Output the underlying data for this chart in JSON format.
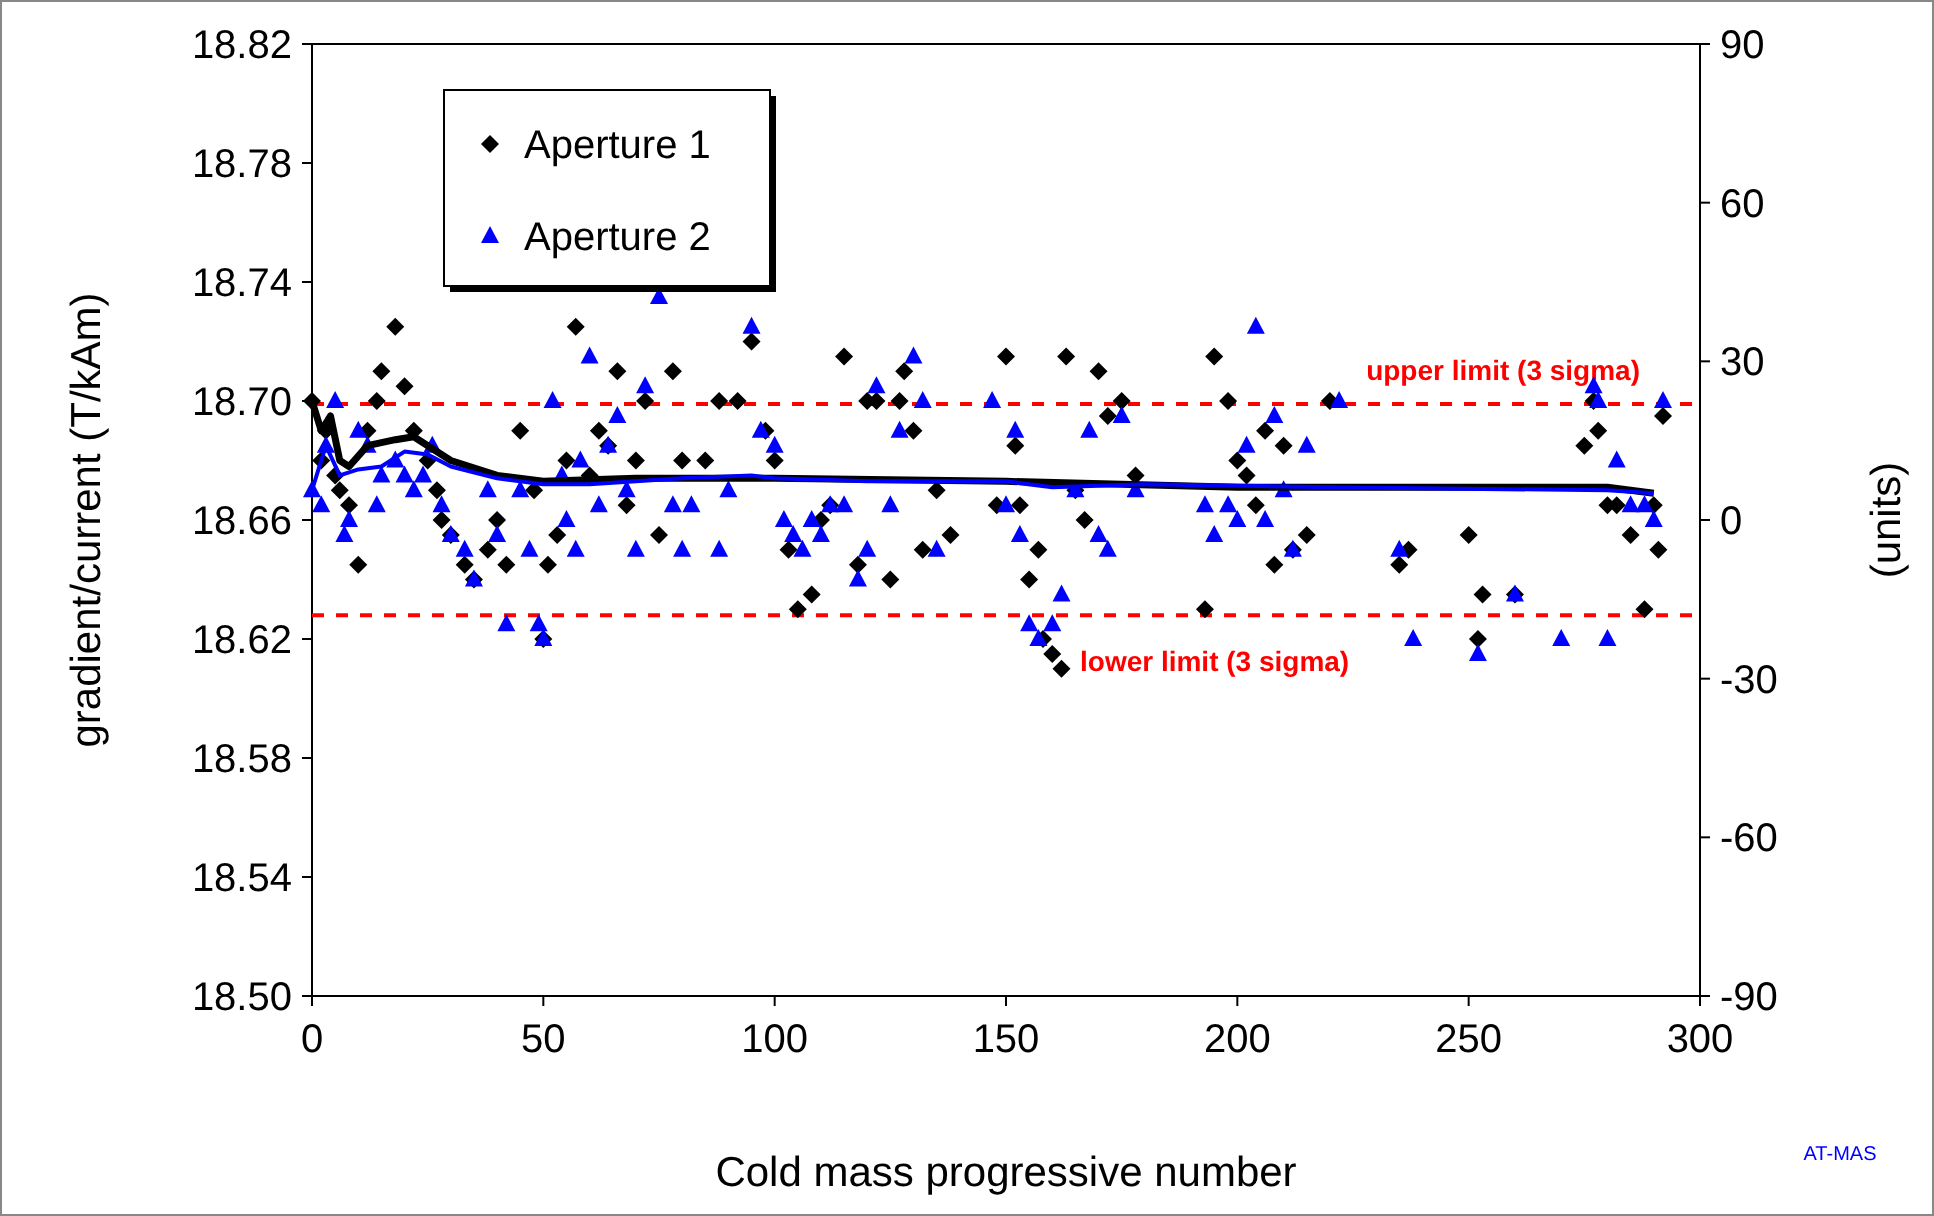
{
  "chart_data": {
    "type": "scatter",
    "xlabel": "Cold mass progressive number",
    "ylabel": "gradient/current  (T/kAm)",
    "y2label": "(units)",
    "xlim": [
      0,
      300
    ],
    "xticks": [
      0,
      50,
      100,
      150,
      200,
      250,
      300
    ],
    "ylim": [
      18.5,
      18.82
    ],
    "yticks": [
      {
        "value": 18.5,
        "label": "18.50"
      },
      18.54,
      18.58,
      18.62,
      18.66,
      {
        "value": 18.7,
        "label": "18.70"
      },
      18.74,
      18.78,
      18.82
    ],
    "y2lim": [
      -90,
      90
    ],
    "y2ticks": [
      -90,
      -60,
      -30,
      0,
      30,
      60,
      90
    ],
    "grid": false,
    "legend": "top left",
    "ref_lines": [
      {
        "axis": "y",
        "value": 18.699,
        "label": "upper limit (3 sigma)",
        "color": "#ff0000",
        "line_style": "dashed"
      },
      {
        "axis": "y",
        "value": 18.628,
        "label": "lower limit (3 sigma)",
        "color": "#ff0000",
        "line_style": "dashed"
      }
    ],
    "annotations": [
      "AT-MAS"
    ],
    "series": [
      {
        "name": "Aperture 1",
        "marker": "diamond",
        "color": "#000000",
        "x": [
          0,
          2,
          3,
          5,
          6,
          8,
          10,
          12,
          14,
          15,
          18,
          20,
          22,
          25,
          27,
          28,
          30,
          33,
          35,
          38,
          40,
          42,
          45,
          48,
          50,
          51,
          53,
          55,
          57,
          60,
          62,
          64,
          66,
          68,
          70,
          72,
          75,
          78,
          80,
          85,
          88,
          92,
          95,
          98,
          100,
          103,
          105,
          108,
          110,
          112,
          115,
          118,
          120,
          122,
          125,
          127,
          128,
          130,
          132,
          135,
          138,
          148,
          150,
          152,
          153,
          155,
          157,
          158,
          160,
          162,
          163,
          165,
          167,
          170,
          172,
          175,
          178,
          193,
          195,
          198,
          200,
          202,
          204,
          206,
          208,
          210,
          212,
          215,
          220,
          235,
          237,
          250,
          252,
          253,
          260,
          275,
          277,
          278,
          280,
          282,
          285,
          288,
          290,
          292,
          291
        ],
        "values": [
          18.7,
          18.68,
          18.69,
          18.675,
          18.67,
          18.665,
          18.645,
          18.69,
          18.7,
          18.71,
          18.725,
          18.705,
          18.69,
          18.68,
          18.67,
          18.66,
          18.655,
          18.645,
          18.64,
          18.65,
          18.66,
          18.645,
          18.69,
          18.67,
          18.62,
          18.645,
          18.655,
          18.68,
          18.725,
          18.675,
          18.69,
          18.685,
          18.71,
          18.665,
          18.68,
          18.7,
          18.655,
          18.71,
          18.68,
          18.68,
          18.7,
          18.7,
          18.72,
          18.69,
          18.68,
          18.65,
          18.63,
          18.635,
          18.66,
          18.665,
          18.715,
          18.645,
          18.7,
          18.7,
          18.64,
          18.7,
          18.71,
          18.69,
          18.65,
          18.67,
          18.655,
          18.665,
          18.715,
          18.685,
          18.665,
          18.64,
          18.65,
          18.62,
          18.615,
          18.61,
          18.715,
          18.67,
          18.66,
          18.71,
          18.695,
          18.7,
          18.675,
          18.63,
          18.715,
          18.7,
          18.68,
          18.675,
          18.665,
          18.69,
          18.645,
          18.685,
          18.65,
          18.655,
          18.7,
          18.645,
          18.65,
          18.655,
          18.62,
          18.635,
          18.635,
          18.685,
          18.7,
          18.69,
          18.665,
          18.665,
          18.655,
          18.63,
          18.665,
          18.695,
          18.65
        ]
      },
      {
        "name": "Aperture 2",
        "marker": "triangle",
        "color": "#0000ff",
        "x": [
          0,
          2,
          3,
          5,
          7,
          8,
          10,
          12,
          14,
          15,
          18,
          20,
          22,
          24,
          26,
          28,
          30,
          33,
          35,
          38,
          40,
          42,
          45,
          47,
          49,
          50,
          52,
          54,
          55,
          57,
          58,
          60,
          62,
          64,
          66,
          68,
          70,
          72,
          75,
          78,
          80,
          82,
          88,
          90,
          95,
          97,
          100,
          102,
          104,
          106,
          108,
          110,
          112,
          115,
          118,
          120,
          122,
          125,
          127,
          130,
          132,
          135,
          147,
          150,
          152,
          153,
          155,
          157,
          160,
          162,
          165,
          168,
          170,
          172,
          175,
          178,
          193,
          195,
          198,
          200,
          202,
          204,
          206,
          208,
          210,
          212,
          215,
          222,
          235,
          238,
          252,
          260,
          270,
          277,
          278,
          280,
          282,
          285,
          288,
          290,
          292
        ],
        "values": [
          18.67,
          18.665,
          18.685,
          18.7,
          18.655,
          18.66,
          18.69,
          18.685,
          18.665,
          18.675,
          18.68,
          18.675,
          18.67,
          18.675,
          18.685,
          18.665,
          18.655,
          18.65,
          18.64,
          18.67,
          18.655,
          18.625,
          18.67,
          18.65,
          18.625,
          18.62,
          18.7,
          18.675,
          18.66,
          18.65,
          18.68,
          18.715,
          18.665,
          18.685,
          18.695,
          18.67,
          18.65,
          18.705,
          18.735,
          18.665,
          18.65,
          18.665,
          18.65,
          18.67,
          18.725,
          18.69,
          18.685,
          18.66,
          18.655,
          18.65,
          18.66,
          18.655,
          18.665,
          18.665,
          18.64,
          18.65,
          18.705,
          18.665,
          18.69,
          18.715,
          18.7,
          18.65,
          18.7,
          18.665,
          18.69,
          18.655,
          18.625,
          18.62,
          18.625,
          18.635,
          18.67,
          18.69,
          18.655,
          18.65,
          18.695,
          18.67,
          18.665,
          18.655,
          18.665,
          18.66,
          18.685,
          18.725,
          18.66,
          18.695,
          18.67,
          18.65,
          18.685,
          18.7,
          18.65,
          18.62,
          18.615,
          18.635,
          18.62,
          18.705,
          18.7,
          18.62,
          18.68,
          18.665,
          18.665,
          18.66,
          18.7
        ]
      },
      {
        "type": "line",
        "marker": "none",
        "color": "#000000",
        "x": [
          0,
          2,
          4,
          6,
          8,
          12,
          18,
          22,
          30,
          40,
          50,
          70,
          100,
          150,
          200,
          280,
          290
        ],
        "values": [
          18.7,
          18.69,
          18.695,
          18.68,
          18.678,
          18.685,
          18.687,
          18.688,
          18.68,
          18.675,
          18.673,
          18.674,
          18.674,
          18.673,
          18.671,
          18.671,
          18.669
        ]
      },
      {
        "type": "line",
        "marker": "none",
        "color": "#0000ff",
        "x": [
          0,
          3,
          6,
          10,
          15,
          20,
          25,
          30,
          40,
          50,
          60,
          80,
          95,
          100,
          120,
          150,
          160,
          180,
          220,
          280,
          290
        ],
        "values": [
          18.67,
          18.685,
          18.675,
          18.677,
          18.678,
          18.683,
          18.682,
          18.678,
          18.674,
          18.672,
          18.672,
          18.674,
          18.675,
          18.674,
          18.673,
          18.673,
          18.671,
          18.672,
          18.671,
          18.67,
          18.669
        ]
      }
    ]
  }
}
